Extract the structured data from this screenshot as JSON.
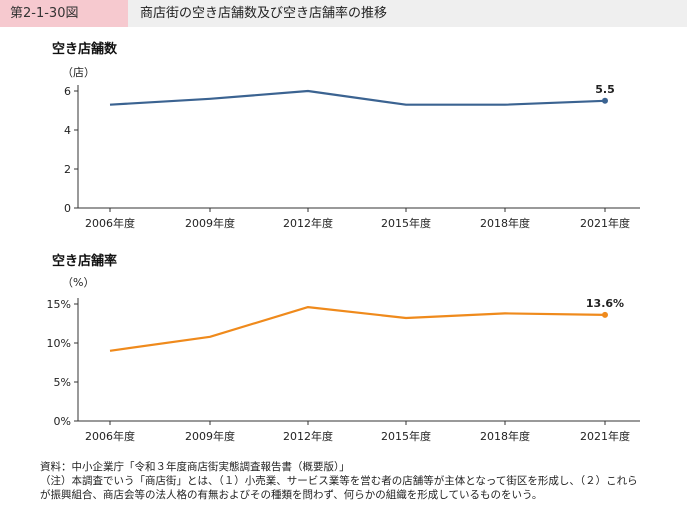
{
  "header": {
    "figure_number": "第2-1-30図",
    "title": "商店街の空き店舗数及び空き店舗率の推移",
    "accent_color": "#f6c9cf",
    "bar_color": "#efefef"
  },
  "chart_data": [
    {
      "type": "line",
      "title": "空き店舗数",
      "unit": "（店）",
      "categories": [
        "2006年度",
        "2009年度",
        "2012年度",
        "2015年度",
        "2018年度",
        "2021年度"
      ],
      "values": [
        5.3,
        5.6,
        6.0,
        5.3,
        5.3,
        5.5
      ],
      "ylim": [
        0,
        6
      ],
      "yticks": [
        0,
        2,
        4,
        6
      ],
      "ytick_labels": [
        "0",
        "2",
        "4",
        "6"
      ],
      "end_label": "5.5",
      "color": "#3b6391"
    },
    {
      "type": "line",
      "title": "空き店舗率",
      "unit": "（%）",
      "categories": [
        "2006年度",
        "2009年度",
        "2012年度",
        "2015年度",
        "2018年度",
        "2021年度"
      ],
      "values": [
        9.0,
        10.8,
        14.6,
        13.2,
        13.8,
        13.6
      ],
      "ylim": [
        0,
        15
      ],
      "yticks": [
        0,
        5,
        10,
        15
      ],
      "ytick_labels": [
        "0%",
        "5%",
        "10%",
        "15%"
      ],
      "end_label": "13.6%",
      "color": "#ef8a1c"
    }
  ],
  "notes": {
    "source": "資料：中小企業庁「令和３年度商店街実態調査報告書（概要版）」",
    "note_line1": "（注）本調査でいう「商店街」とは、（１）小売業、サービス業等を営む者の店舗等が主体となって街区を形成し、（２）これら",
    "note_line2": "が振興組合、商店会等の法人格の有無およびその種類を問わず、何らかの組織を形成しているものをいう。"
  }
}
